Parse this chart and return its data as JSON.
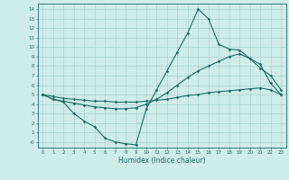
{
  "xlabel": "Humidex (Indice chaleur)",
  "bg_color": "#ceecea",
  "grid_color": "#9ecfcc",
  "line_color": "#1e6b68",
  "x_values": [
    0,
    1,
    2,
    3,
    4,
    5,
    6,
    7,
    8,
    9,
    10,
    11,
    12,
    13,
    14,
    15,
    16,
    17,
    18,
    19,
    20,
    21,
    22,
    23
  ],
  "line1": [
    5.0,
    4.5,
    4.2,
    3.0,
    2.2,
    1.6,
    0.4,
    0.0,
    -0.2,
    -0.3,
    3.5,
    5.5,
    7.5,
    9.5,
    11.5,
    14.0,
    13.0,
    10.3,
    9.8,
    9.7,
    8.8,
    8.2,
    6.2,
    5.0
  ],
  "line2": [
    5.0,
    4.5,
    4.3,
    4.1,
    3.9,
    3.7,
    3.6,
    3.5,
    3.5,
    3.6,
    4.0,
    4.5,
    5.2,
    6.0,
    6.8,
    7.5,
    8.0,
    8.5,
    9.0,
    9.3,
    8.8,
    7.8,
    7.0,
    5.5
  ],
  "line3": [
    5.0,
    4.8,
    4.6,
    4.5,
    4.4,
    4.3,
    4.3,
    4.2,
    4.2,
    4.2,
    4.3,
    4.4,
    4.5,
    4.7,
    4.9,
    5.0,
    5.2,
    5.3,
    5.4,
    5.5,
    5.6,
    5.7,
    5.5,
    5.0
  ],
  "ytick_labels": [
    "-0",
    "1",
    "2",
    "3",
    "4",
    "5",
    "6",
    "7",
    "8",
    "9",
    "10",
    "11",
    "12",
    "13",
    "14"
  ],
  "ytick_vals": [
    0,
    1,
    2,
    3,
    4,
    5,
    6,
    7,
    8,
    9,
    10,
    11,
    12,
    13,
    14
  ],
  "ylim": [
    -0.6,
    14.6
  ],
  "xlim": [
    -0.5,
    23.5
  ]
}
